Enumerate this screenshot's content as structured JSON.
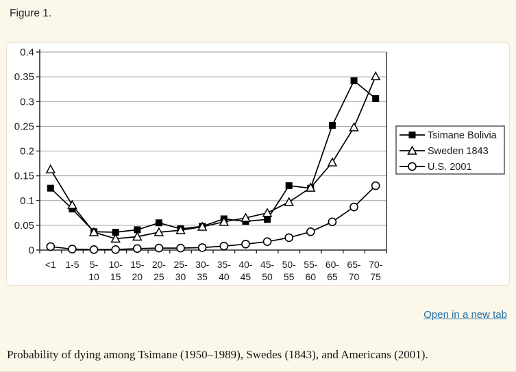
{
  "page": {
    "figure_label": "Figure 1.",
    "link_text": "Open in a new tab",
    "caption": "Probability of dying among Tsimane (1950–1989), Swedes (1843), and Americans (2001)."
  },
  "colors": {
    "page_bg": "#fbf7e9",
    "card_bg": "#ffffff",
    "card_border": "#e7e2d3",
    "grid": "#9e9e9e",
    "axis": "#2b2b2b",
    "series": "#000000",
    "marker_fill_open": "#ffffff",
    "legend_border": "#3a3a3a",
    "link": "#1f6fa8",
    "text": "#1a1a1a"
  },
  "chart_data": {
    "type": "line",
    "title": "",
    "xlabel": "",
    "ylabel": "",
    "ylim": [
      0,
      0.4
    ],
    "ytick_step": 0.05,
    "ytick_labels": [
      "0",
      "0.05",
      "0.1",
      "0.15",
      "0.2",
      "0.25",
      "0.3",
      "0.35",
      "0.4"
    ],
    "grid": true,
    "legend_position": "right",
    "categories": [
      "<1",
      "1-5",
      "5-10",
      "10-15",
      "15-20",
      "20-25",
      "25-30",
      "30-35",
      "35-40",
      "40-45",
      "45-50",
      "50-55",
      "55-60",
      "60-65",
      "65-70",
      "70-75"
    ],
    "category_display": [
      [
        "<1"
      ],
      [
        "1-5"
      ],
      [
        "5-",
        "10"
      ],
      [
        "10-",
        "15"
      ],
      [
        "15-",
        "20"
      ],
      [
        "20-",
        "25"
      ],
      [
        "25-",
        "30"
      ],
      [
        "30-",
        "35"
      ],
      [
        "35-",
        "40"
      ],
      [
        "40-",
        "45"
      ],
      [
        "45-",
        "50"
      ],
      [
        "50-",
        "55"
      ],
      [
        "55-",
        "60"
      ],
      [
        "60-",
        "65"
      ],
      [
        "65-",
        "70"
      ],
      [
        "70-",
        "75"
      ]
    ],
    "series": [
      {
        "name": "Tsimane Bolivia",
        "marker": "square",
        "values": [
          0.125,
          0.083,
          0.037,
          0.036,
          0.041,
          0.055,
          0.043,
          0.048,
          0.063,
          0.058,
          0.062,
          0.13,
          0.125,
          0.252,
          0.342,
          0.306
        ]
      },
      {
        "name": "Sweden 1843",
        "marker": "triangle",
        "values": [
          0.163,
          0.091,
          0.036,
          0.023,
          0.027,
          0.036,
          0.04,
          0.047,
          0.057,
          0.065,
          0.075,
          0.097,
          0.126,
          0.177,
          0.248,
          0.351
        ]
      },
      {
        "name": "U.S. 2001",
        "marker": "circle",
        "values": [
          0.007,
          0.002,
          0.001,
          0.001,
          0.003,
          0.004,
          0.004,
          0.005,
          0.008,
          0.012,
          0.017,
          0.025,
          0.037,
          0.057,
          0.087,
          0.13
        ]
      }
    ]
  }
}
